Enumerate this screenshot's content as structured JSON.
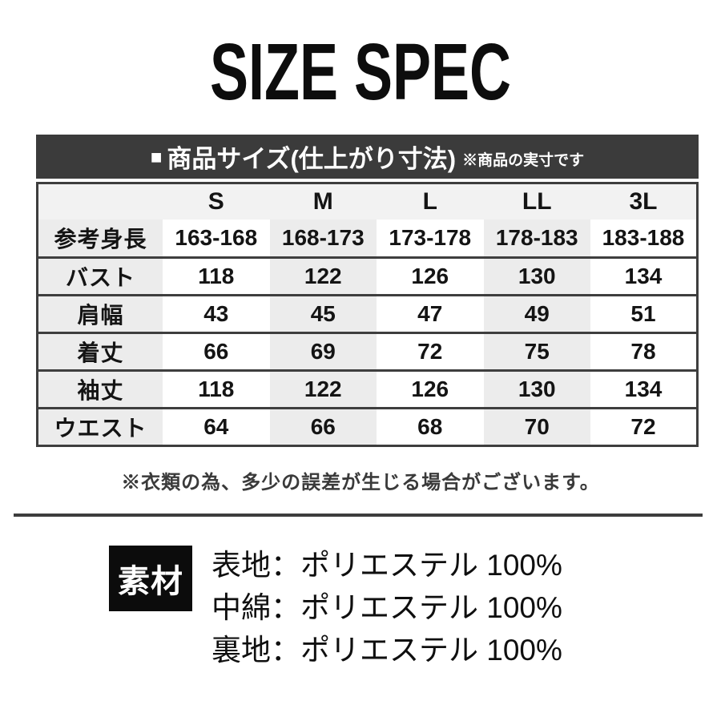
{
  "page": {
    "title": "SIZE SPEC"
  },
  "size_table": {
    "header_bar": {
      "bullet": "■",
      "title": "商品サイズ(仕上がり寸法)",
      "subtitle": "※商品の実寸です"
    },
    "columns": [
      "S",
      "M",
      "L",
      "LL",
      "3L"
    ],
    "rows": [
      {
        "label": "参考身長",
        "values": [
          "163-168",
          "168-173",
          "173-178",
          "178-183",
          "183-188"
        ]
      },
      {
        "label": "バスト",
        "values": [
          "118",
          "122",
          "126",
          "130",
          "134"
        ]
      },
      {
        "label": "肩幅",
        "values": [
          "43",
          "45",
          "47",
          "49",
          "51"
        ]
      },
      {
        "label": "着丈",
        "values": [
          "66",
          "69",
          "72",
          "75",
          "78"
        ]
      },
      {
        "label": "袖丈",
        "values": [
          "118",
          "122",
          "126",
          "130",
          "134"
        ]
      },
      {
        "label": "ウエスト",
        "values": [
          "64",
          "66",
          "68",
          "70",
          "72"
        ]
      }
    ],
    "note": "※衣類の為、多少の誤差が生じる場合がございます。"
  },
  "materials": {
    "label": "素材",
    "items": [
      "表地：ポリエステル 100%",
      "中綿：ポリエステル 100%",
      "裏地：ポリエステル 100%"
    ]
  },
  "colors": {
    "header_bar_bg": "#3b3b3b",
    "table_border": "#3e3e3e",
    "shaded_cell": "#ececec",
    "header_row_bg": "#f2f2f2",
    "material_box_bg": "#0c0c0c"
  }
}
